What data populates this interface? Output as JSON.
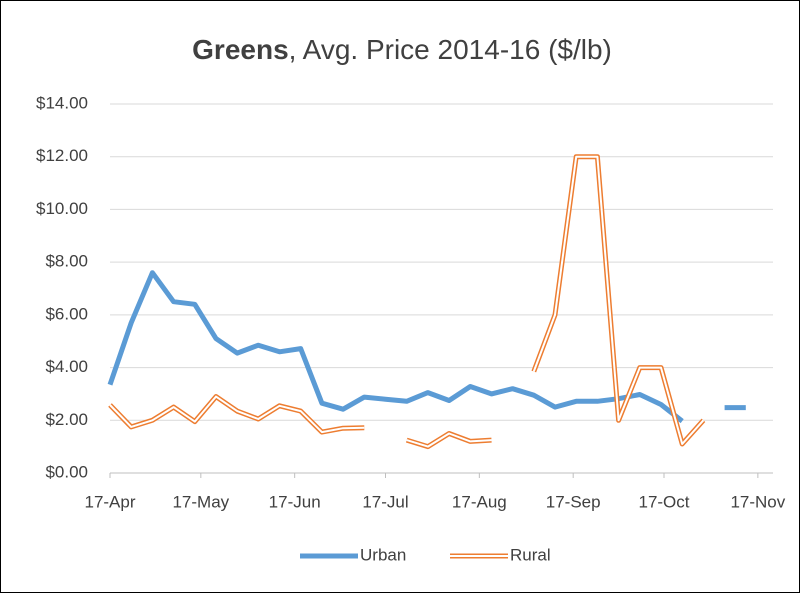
{
  "chart_data": {
    "type": "line",
    "title": [
      "Greens",
      ", Avg. Price 2014-16  ($/lb)"
    ],
    "x": [
      0,
      7,
      14,
      21,
      28,
      35,
      42,
      49,
      56,
      63,
      70,
      77,
      84,
      91,
      98,
      105,
      112,
      119,
      126,
      133,
      140,
      147,
      154,
      161,
      168,
      175,
      182,
      189,
      196,
      203,
      210
    ],
    "series": [
      {
        "name": "Urban",
        "color": "#5b9bd5",
        "style": "solid",
        "values": [
          3.35,
          5.7,
          7.6,
          6.5,
          6.4,
          5.1,
          4.55,
          4.85,
          4.6,
          4.72,
          2.65,
          2.42,
          2.88,
          2.8,
          2.72,
          3.05,
          2.75,
          3.28,
          3.0,
          3.2,
          2.95,
          2.5,
          2.72,
          2.72,
          2.82,
          2.98,
          2.6,
          1.97,
          null,
          2.48,
          2.48
        ]
      },
      {
        "name": "Rural",
        "color": "#ed7d31",
        "style": "double",
        "values": [
          2.58,
          1.75,
          2.0,
          2.5,
          1.95,
          2.9,
          2.35,
          2.05,
          2.55,
          2.35,
          1.55,
          1.7,
          1.72,
          null,
          1.25,
          1.0,
          1.5,
          1.2,
          1.25,
          null,
          3.85,
          6.0,
          12.0,
          12.0,
          2.0,
          4.0,
          4.0,
          1.1,
          2.0,
          null,
          null
        ]
      }
    ],
    "xlim": [
      0,
      219
    ],
    "xticks": [
      {
        "value": 0,
        "label": "17-Apr"
      },
      {
        "value": 30,
        "label": "17-May"
      },
      {
        "value": 61,
        "label": "17-Jun"
      },
      {
        "value": 91,
        "label": "17-Jul"
      },
      {
        "value": 122,
        "label": "17-Aug"
      },
      {
        "value": 153,
        "label": "17-Sep"
      },
      {
        "value": 183,
        "label": "17-Oct"
      },
      {
        "value": 214,
        "label": "17-Nov"
      }
    ],
    "ylim": [
      0,
      14
    ],
    "yticks": [
      {
        "value": 0,
        "label": "$0.00"
      },
      {
        "value": 2,
        "label": "$2.00"
      },
      {
        "value": 4,
        "label": "$4.00"
      },
      {
        "value": 6,
        "label": "$6.00"
      },
      {
        "value": 8,
        "label": "$8.00"
      },
      {
        "value": 10,
        "label": "$10.00"
      },
      {
        "value": 12,
        "label": "$12.00"
      },
      {
        "value": 14,
        "label": "$14.00"
      }
    ],
    "grid": true,
    "legend": "bottom"
  }
}
